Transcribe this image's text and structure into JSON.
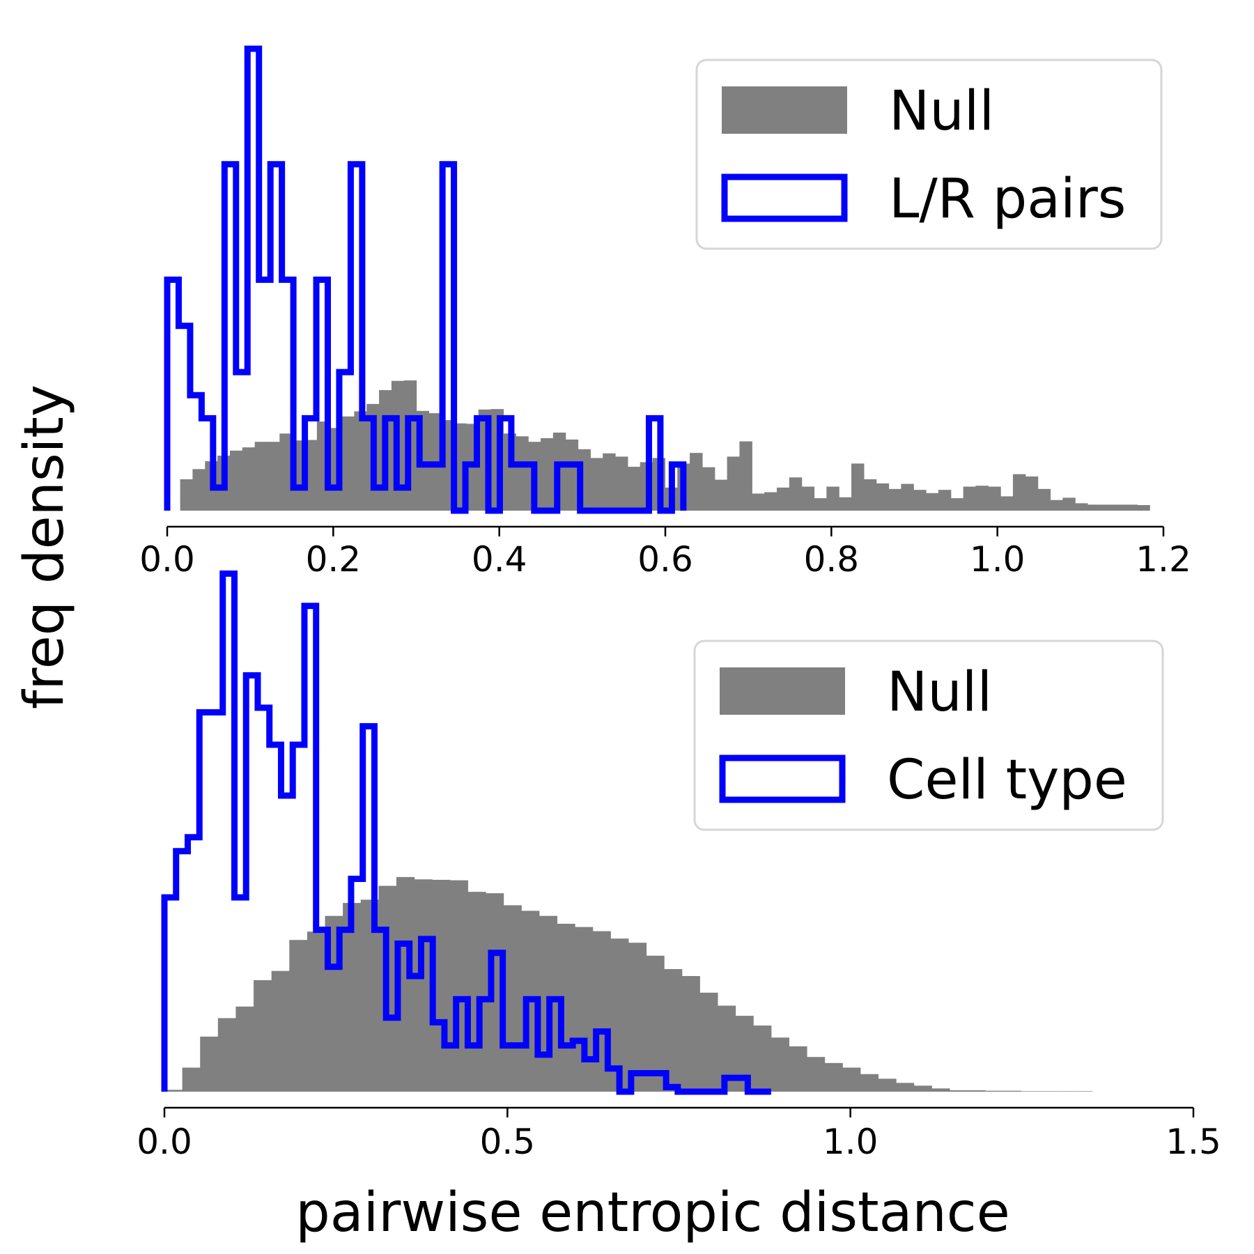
{
  "figure": {
    "ylabel": "freq density",
    "xlabel": "pairwise entropic distance"
  },
  "colors": {
    "null_fill": "#808080",
    "observed_line": "#0000ff",
    "legend_border": "#d6d6d6"
  },
  "chart_data": [
    {
      "type": "histogram",
      "title": "",
      "xlim": [
        0.0,
        1.2
      ],
      "xticks": [
        "0.0",
        "0.2",
        "0.4",
        "0.6",
        "0.8",
        "1.0",
        "1.2"
      ],
      "yticks_visible": false,
      "legend_position": "top-right",
      "series": [
        {
          "name": "Null",
          "style": "filled",
          "bins": [
            0.0156,
            1.1834
          ],
          "values": [
            0.068,
            0.09,
            0.107,
            0.119,
            0.13,
            0.137,
            0.149,
            0.149,
            0.167,
            0.152,
            0.153,
            0.193,
            0.179,
            0.204,
            0.215,
            0.231,
            0.261,
            0.281,
            0.282,
            0.216,
            0.211,
            0.196,
            0.189,
            0.188,
            0.219,
            0.22,
            0.167,
            0.161,
            0.149,
            0.157,
            0.169,
            0.154,
            0.133,
            0.114,
            0.124,
            0.117,
            0.095,
            0.105,
            0.114,
            0.05,
            0.102,
            0.125,
            0.094,
            0.067,
            0.117,
            0.15,
            0.037,
            0.04,
            0.05,
            0.072,
            0.052,
            0.027,
            0.052,
            0.029,
            0.102,
            0.068,
            0.059,
            0.047,
            0.058,
            0.045,
            0.038,
            0.045,
            0.027,
            0.052,
            0.054,
            0.052,
            0.031,
            0.079,
            0.074,
            0.047,
            0.023,
            0.028,
            0.016,
            0.013,
            0.013,
            0.013,
            0.013,
            0.012
          ]
        },
        {
          "name": "L/R pairs",
          "style": "step",
          "bins": [
            0.0,
            0.6217
          ],
          "values": [
            0.5,
            0.4,
            0.25,
            0.2,
            0.05,
            0.75,
            0.3,
            1.0,
            0.5,
            0.75,
            0.5,
            0.05,
            0.2,
            0.5,
            0.05,
            0.3,
            0.75,
            0.2,
            0.05,
            0.2,
            0.05,
            0.2,
            0.1,
            0.1,
            0.75,
            0.0,
            0.1,
            0.2,
            0.0,
            0.2,
            0.1,
            0.1,
            0.0,
            0.0,
            0.1,
            0.1,
            0.0,
            0.0,
            0.0,
            0.0,
            0.0,
            0.0,
            0.2,
            0.0,
            0.1
          ]
        }
      ]
    },
    {
      "type": "histogram",
      "title": "",
      "xlim": [
        0.0,
        1.5
      ],
      "xticks": [
        "0.0",
        "0.5",
        "1.0",
        "1.5"
      ],
      "yticks_visible": false,
      "legend_position": "top-right",
      "series": [
        {
          "name": "Null",
          "style": "filled",
          "bins": [
            0.0,
            1.3525
          ],
          "values": [
            0.004,
            0.052,
            0.119,
            0.159,
            0.184,
            0.241,
            0.261,
            0.328,
            0.346,
            0.38,
            0.408,
            0.415,
            0.445,
            0.464,
            0.459,
            0.458,
            0.457,
            0.432,
            0.429,
            0.403,
            0.391,
            0.38,
            0.363,
            0.356,
            0.347,
            0.331,
            0.322,
            0.294,
            0.265,
            0.25,
            0.214,
            0.186,
            0.164,
            0.143,
            0.117,
            0.098,
            0.075,
            0.062,
            0.052,
            0.038,
            0.028,
            0.019,
            0.013,
            0.007,
            0.003,
            0.003,
            0.002,
            0.002,
            0.001,
            0.001,
            0.001,
            0.001
          ]
        },
        {
          "name": "Cell type",
          "style": "step",
          "bins": [
            0.0,
            0.8844
          ],
          "values": [
            0.42,
            0.52,
            0.55,
            0.82,
            0.82,
            1.12,
            0.42,
            0.9,
            0.83,
            0.75,
            0.64,
            0.75,
            1.05,
            0.35,
            0.27,
            0.35,
            0.46,
            0.79,
            0.35,
            0.16,
            0.32,
            0.25,
            0.33,
            0.15,
            0.1,
            0.2,
            0.1,
            0.2,
            0.3,
            0.1,
            0.1,
            0.2,
            0.08,
            0.2,
            0.1,
            0.11,
            0.07,
            0.13,
            0.05,
            0.0,
            0.04,
            0.04,
            0.04,
            0.01,
            0.0,
            0.0,
            0.0,
            0.0,
            0.03,
            0.03,
            0.0,
            0.0
          ]
        }
      ]
    }
  ]
}
